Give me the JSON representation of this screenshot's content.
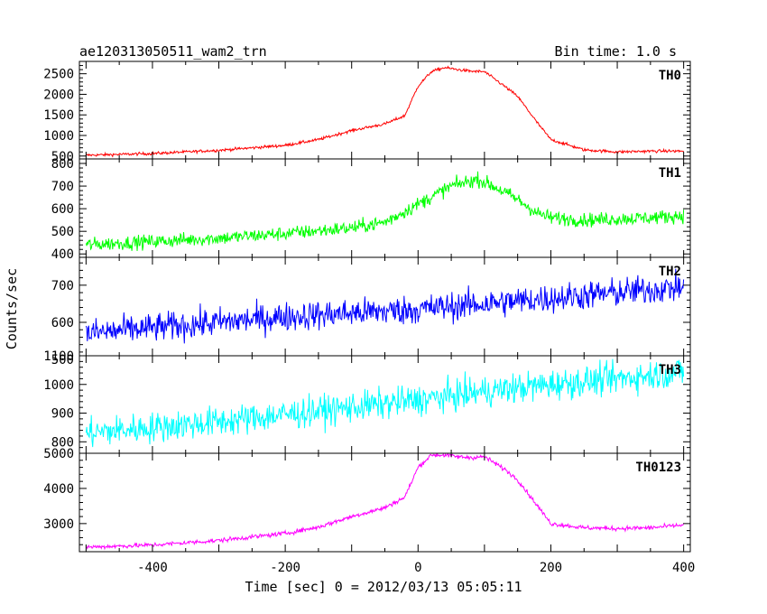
{
  "chart_data": {
    "type": "line",
    "title": "ae120313050511_wam2_trn",
    "subtitle": "Bin time: 1.0 s",
    "xlabel": "Time [sec] 0 = 2012/03/13 05:05:11",
    "ylabel": "Counts/sec",
    "xlim": [
      -510,
      410
    ],
    "x_ticks": [
      -400,
      -200,
      0,
      200,
      400
    ],
    "grid": false,
    "series": [
      {
        "name": "TH0",
        "color": "#ff0000",
        "ylim": [
          430,
          2800
        ],
        "y_ticks": [
          500,
          1000,
          1500,
          2000,
          2500
        ],
        "x": [
          -500,
          -400,
          -300,
          -200,
          -150,
          -100,
          -50,
          -20,
          0,
          20,
          40,
          60,
          80,
          100,
          130,
          150,
          180,
          200,
          250,
          300,
          350,
          400
        ],
        "values": [
          520,
          560,
          640,
          760,
          900,
          1120,
          1280,
          1480,
          2200,
          2550,
          2650,
          2600,
          2560,
          2550,
          2200,
          1950,
          1300,
          900,
          650,
          600,
          620,
          620
        ],
        "noise": 25
      },
      {
        "name": "TH1",
        "color": "#00ff00",
        "ylim": [
          385,
          820
        ],
        "y_ticks": [
          400,
          500,
          600,
          700,
          800
        ],
        "x": [
          -500,
          -400,
          -300,
          -200,
          -100,
          -50,
          0,
          50,
          90,
          120,
          150,
          180,
          200,
          250,
          300,
          350,
          400
        ],
        "values": [
          440,
          455,
          470,
          490,
          515,
          540,
          620,
          700,
          730,
          690,
          640,
          580,
          560,
          550,
          555,
          560,
          570
        ],
        "noise": 22
      },
      {
        "name": "TH2",
        "color": "#0000ff",
        "ylim": [
          510,
          775
        ],
        "y_ticks": [
          500,
          600,
          700
        ],
        "x": [
          -500,
          -400,
          -300,
          -200,
          -100,
          0,
          100,
          200,
          300,
          400
        ],
        "values": [
          570,
          585,
          600,
          615,
          625,
          635,
          650,
          665,
          680,
          695
        ],
        "noise": 28
      },
      {
        "name": "TH3",
        "color": "#00ffff",
        "ylim": [
          760,
          1100
        ],
        "y_ticks": [
          800,
          900,
          1000,
          1100
        ],
        "x": [
          -500,
          -400,
          -300,
          -200,
          -100,
          0,
          100,
          200,
          300,
          400
        ],
        "values": [
          830,
          850,
          870,
          895,
          920,
          945,
          975,
          1000,
          1020,
          1045
        ],
        "noise": 38
      },
      {
        "name": "TH0123",
        "color": "#ff00ff",
        "ylim": [
          2200,
          5000
        ],
        "y_ticks": [
          3000,
          4000,
          5000
        ],
        "x": [
          -500,
          -400,
          -300,
          -200,
          -150,
          -100,
          -50,
          -20,
          0,
          20,
          40,
          60,
          80,
          100,
          130,
          150,
          180,
          200,
          250,
          300,
          350,
          400
        ],
        "values": [
          2330,
          2390,
          2520,
          2720,
          2900,
          3200,
          3450,
          3750,
          4600,
          4950,
          4950,
          4900,
          4880,
          4900,
          4550,
          4250,
          3500,
          3000,
          2880,
          2860,
          2880,
          2960
        ],
        "noise": 45
      }
    ]
  }
}
